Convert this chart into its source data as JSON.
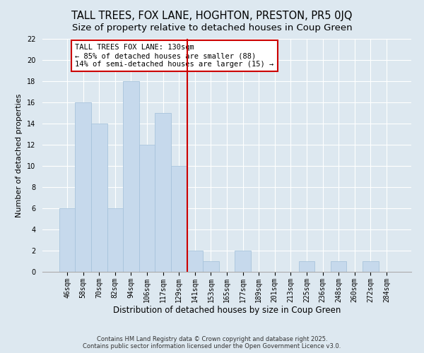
{
  "title": "TALL TREES, FOX LANE, HOGHTON, PRESTON, PR5 0JQ",
  "subtitle": "Size of property relative to detached houses in Coup Green",
  "xlabel": "Distribution of detached houses by size in Coup Green",
  "ylabel": "Number of detached properties",
  "categories": [
    "46sqm",
    "58sqm",
    "70sqm",
    "82sqm",
    "94sqm",
    "106sqm",
    "117sqm",
    "129sqm",
    "141sqm",
    "153sqm",
    "165sqm",
    "177sqm",
    "189sqm",
    "201sqm",
    "213sqm",
    "225sqm",
    "236sqm",
    "248sqm",
    "260sqm",
    "272sqm",
    "284sqm"
  ],
  "values": [
    6,
    16,
    14,
    6,
    18,
    12,
    15,
    10,
    2,
    1,
    0,
    2,
    0,
    0,
    0,
    1,
    0,
    1,
    0,
    1,
    0
  ],
  "bar_color": "#c6d9ec",
  "bar_edge_color": "#a8c4dc",
  "vline_x": 7.5,
  "vline_color": "#cc0000",
  "annotation_text": "TALL TREES FOX LANE: 130sqm\n← 85% of detached houses are smaller (88)\n14% of semi-detached houses are larger (15) →",
  "annotation_box_color": "#ffffff",
  "annotation_box_edge": "#cc0000",
  "ylim": [
    0,
    22
  ],
  "yticks": [
    0,
    2,
    4,
    6,
    8,
    10,
    12,
    14,
    16,
    18,
    20,
    22
  ],
  "background_color": "#dde8f0",
  "grid_color": "#c0cdd8",
  "footer_line1": "Contains HM Land Registry data © Crown copyright and database right 2025.",
  "footer_line2": "Contains public sector information licensed under the Open Government Licence v3.0.",
  "title_fontsize": 10.5,
  "subtitle_fontsize": 9.5,
  "xlabel_fontsize": 8.5,
  "ylabel_fontsize": 8,
  "tick_fontsize": 7,
  "annotation_fontsize": 7.5,
  "footer_fontsize": 6
}
